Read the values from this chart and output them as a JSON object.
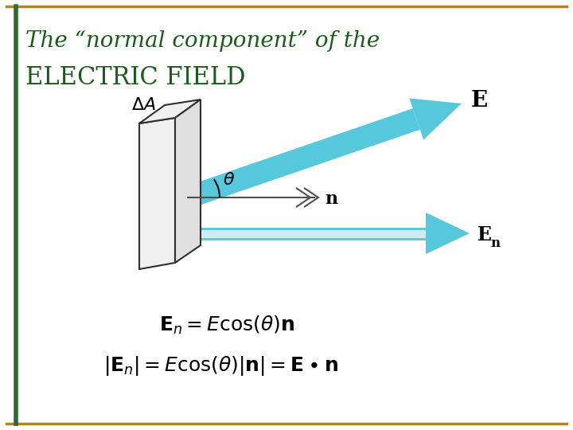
{
  "bg_color": "#ffffff",
  "border_gold": "#b8860b",
  "border_green": "#2e6b2e",
  "title_line1": "The “normal component” of the",
  "title_line2": "ELECTRIC FIELD",
  "title_color": "#1a5c1a",
  "title_fs1": 20,
  "title_fs2": 22,
  "arrow_cyan": "#55c8dc",
  "arrow_cyan_light": "#a8e4ee",
  "arrow_dark": "#505050",
  "plate_face": "#f0f0f0",
  "plate_edge": "#303030",
  "formula1": "$\\mathbf{E}_n = E\\cos(\\theta)\\mathbf{n}$",
  "formula2": "$|\\mathbf{E}_n| = E\\cos(\\theta)|\\mathbf{n}| = \\mathbf{E}\\bullet\\mathbf{n}$",
  "formula_fs": 18
}
